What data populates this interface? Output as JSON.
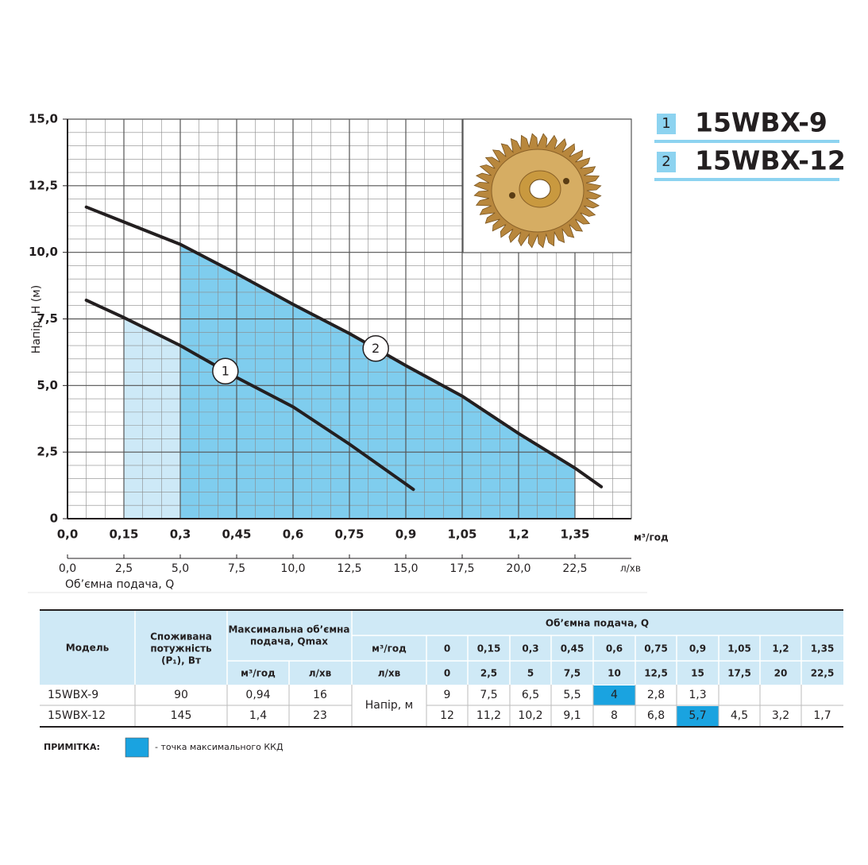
{
  "chart_data": {
    "type": "line",
    "y_label": "Напір, Н (м)",
    "x_label": "Об’ємна подача, Q",
    "x_unit": "м³/год",
    "x2_unit": "л/хв",
    "xlim": [
      0,
      1.5
    ],
    "xticks": [
      {
        "value": 0,
        "label": "0,0"
      },
      {
        "value": 0.15,
        "label": "0,15"
      },
      {
        "value": 0.3,
        "label": "0,3"
      },
      {
        "value": 0.45,
        "label": "0,45"
      },
      {
        "value": 0.6,
        "label": "0,6"
      },
      {
        "value": 0.75,
        "label": "0,75"
      },
      {
        "value": 0.9,
        "label": "0,9"
      },
      {
        "value": 1.05,
        "label": "1,05"
      },
      {
        "value": 1.2,
        "label": "1,2"
      },
      {
        "value": 1.35,
        "label": "1,35"
      }
    ],
    "x2lim": [
      0,
      25
    ],
    "x2ticks": [
      {
        "value": 0,
        "label": "0,0"
      },
      {
        "value": 2.5,
        "label": "2,5"
      },
      {
        "value": 5,
        "label": "5,0"
      },
      {
        "value": 7.5,
        "label": "7,5"
      },
      {
        "value": 10,
        "label": "10,0"
      },
      {
        "value": 12.5,
        "label": "12,5"
      },
      {
        "value": 15,
        "label": "15,0"
      },
      {
        "value": 17.5,
        "label": "17,5"
      },
      {
        "value": 20,
        "label": "20,0"
      },
      {
        "value": 22.5,
        "label": "22,5"
      }
    ],
    "ylim": [
      0,
      15
    ],
    "yticks": [
      0,
      {
        "value": 2.5,
        "label": "2,5"
      },
      {
        "value": 5,
        "label": "5,0"
      },
      {
        "value": 7.5,
        "label": "7,5"
      },
      {
        "value": 10,
        "label": "10,0"
      },
      {
        "value": 12.5,
        "label": "12,5"
      },
      {
        "value": 15,
        "label": "15,0"
      }
    ],
    "grid": true,
    "series": [
      {
        "name": "15WBX-9",
        "label": "1",
        "color": "#231f20",
        "area_color": "#cde9f7",
        "legend_color": "#8dd3f0",
        "range": [
          0.15,
          0.9
        ],
        "x": [
          0.05,
          0.15,
          0.3,
          0.45,
          0.6,
          0.75,
          0.92
        ],
        "values": [
          8.2,
          7.55,
          6.5,
          5.3,
          4.2,
          2.8,
          1.1
        ]
      },
      {
        "name": "15WBX-12",
        "label": "2",
        "color": "#231f20",
        "area_color": "#7fcdee",
        "legend_color": "#8dd3f0",
        "range": [
          0.3,
          1.35
        ],
        "x": [
          0.05,
          0.3,
          0.45,
          0.6,
          0.75,
          0.9,
          1.05,
          1.2,
          1.35,
          1.42
        ],
        "values": [
          11.7,
          10.3,
          9.2,
          8.05,
          6.95,
          5.75,
          4.6,
          3.2,
          1.9,
          1.2
        ]
      }
    ]
  },
  "table": {
    "model": "Модель",
    "power": [
      "Споживана",
      "потужність",
      "(P₁), Вт"
    ],
    "qmax": [
      "Максимальна об’ємна",
      "подача, Qmax"
    ],
    "qmax_units": [
      "м³/год",
      "л/хв"
    ],
    "flow": "Об’ємна подача, Q",
    "flow_units": [
      "м³/год",
      "л/хв"
    ],
    "flow_m3": [
      "0",
      "0,15",
      "0,3",
      "0,45",
      "0,6",
      "0,75",
      "0,9",
      "1,05",
      "1,2",
      "1,35"
    ],
    "flow_l": [
      "0",
      "2,5",
      "5",
      "7,5",
      "10",
      "12,5",
      "15",
      "17,5",
      "20",
      "22,5"
    ],
    "head": "Напір, м",
    "rows": [
      {
        "model": "15WBX-9",
        "power": "90",
        "qmax": [
          "0,94",
          "16"
        ],
        "heads": [
          "9",
          "7,5",
          "6,5",
          "5,5",
          "4",
          "2,8",
          "1,3"
        ],
        "best": 4
      },
      {
        "model": "15WBX-12",
        "power": "145",
        "qmax": [
          "1,4",
          "23"
        ],
        "heads": [
          "12",
          "11,2",
          "10,2",
          "9,1",
          "8",
          "6,8",
          "5,7",
          "4,5",
          "3,2",
          "1,7"
        ],
        "best": 6
      }
    ]
  },
  "note": {
    "label": "ПРИМІТКА:",
    "text": "- точка максимального ККД",
    "color": "#1aa3e0"
  }
}
